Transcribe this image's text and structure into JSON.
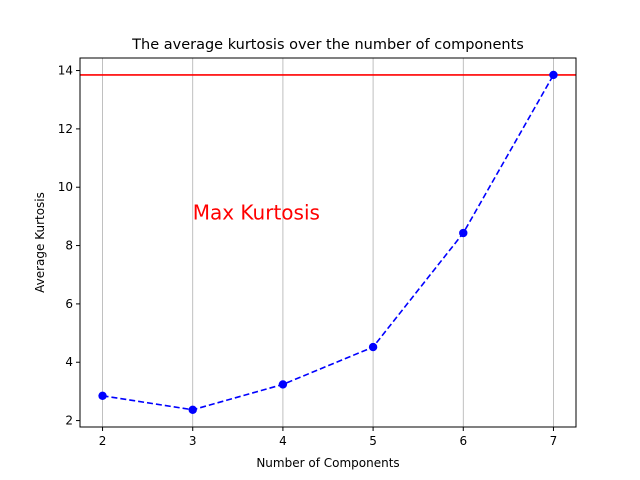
{
  "chart_data": {
    "type": "line",
    "title": "The average kurtosis over the number of components",
    "xlabel": "Number of Components",
    "ylabel": "Average Kurtosis",
    "xlim": [
      1.75,
      7.25
    ],
    "ylim": [
      1.78,
      14.43
    ],
    "xticks": [
      2,
      3,
      4,
      5,
      6,
      7
    ],
    "yticks": [
      2,
      4,
      6,
      8,
      10,
      12,
      14
    ],
    "grid": "x-only",
    "series": [
      {
        "x": [
          2,
          3,
          4,
          5,
          6,
          7
        ],
        "values": [
          2.85,
          2.37,
          3.24,
          4.52,
          8.43,
          13.85
        ],
        "color": "#0000ff",
        "linestyle": "dashed",
        "marker": "circle"
      }
    ],
    "hline": {
      "y": 13.85,
      "color": "#ff0000"
    },
    "annotations": [
      {
        "text": "Max Kurtosis",
        "x": 3,
        "y": 8.9,
        "color": "#ff0000"
      }
    ]
  }
}
